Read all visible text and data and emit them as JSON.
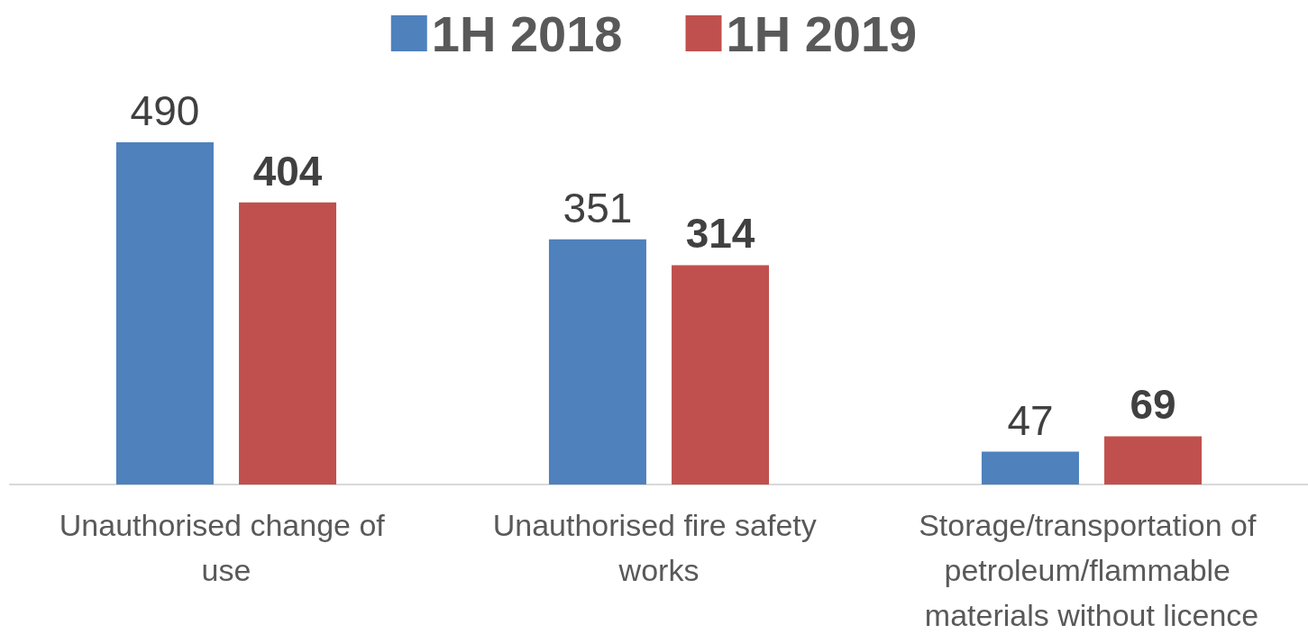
{
  "chart_data": {
    "type": "bar",
    "categories": [
      "Unauthorised change of use",
      "Unauthorised fire safety works",
      "Storage/transportation of petroleum/flammable materials without licence"
    ],
    "series": [
      {
        "name": "1H 2018",
        "color": "#4f81bd",
        "values": [
          490,
          351,
          47
        ]
      },
      {
        "name": "1H 2019",
        "color": "#c0504d",
        "values": [
          404,
          314,
          69
        ]
      }
    ],
    "data_labels": true,
    "legend": "top"
  }
}
